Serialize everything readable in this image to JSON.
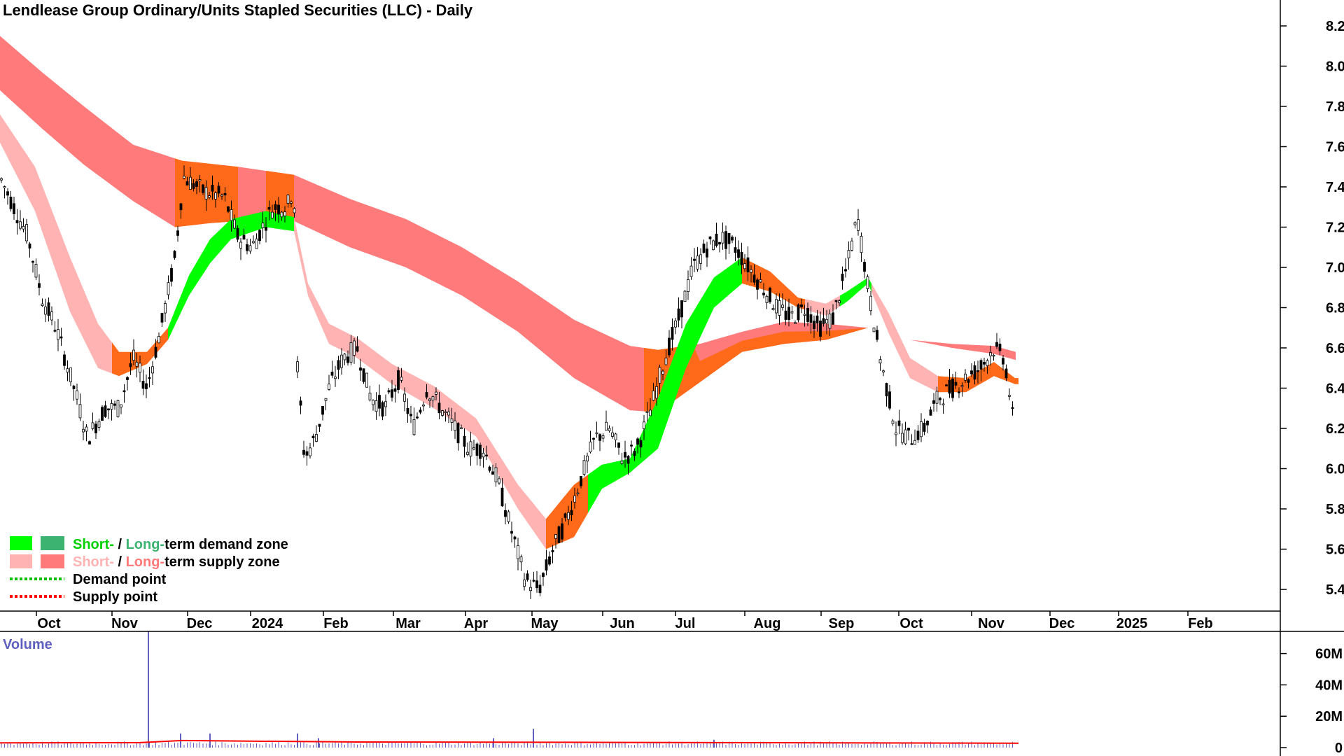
{
  "chart_data": {
    "type": "candlestick",
    "title": "Lendlease Group Ordinary/Units Stapled Securities (LLC) - Daily",
    "price_axis": {
      "ylim": [
        5.3,
        8.3
      ],
      "ticks": [
        "5.4",
        "5.6",
        "5.8",
        "6.0",
        "6.2",
        "6.4",
        "6.6",
        "6.8",
        "7.0",
        "7.2",
        "7.4",
        "7.6",
        "7.8",
        "8.0",
        "8.2"
      ]
    },
    "x_labels": [
      "Oct",
      "Nov",
      "Dec",
      "2024",
      "Feb",
      "Mar",
      "Apr",
      "May",
      "Jun",
      "Jul",
      "Aug",
      "Sep",
      "Oct",
      "Nov",
      "Dec",
      "2025",
      "Feb"
    ],
    "volume_axis": {
      "label": "Volume",
      "ylim": [
        0,
        72
      ],
      "ticks": [
        "0",
        "20M",
        "40M",
        "60M"
      ]
    },
    "colors": {
      "short_demand": "#00ff00",
      "long_demand": "#3cb371",
      "short_supply": "#ffb3b3",
      "long_supply": "#ff7a7a",
      "overlap": "#ff6a1a",
      "demand_point": "#00c000",
      "supply_point": "#ff0000",
      "volume": "#6060c0",
      "volume_ma": "#ff0000"
    },
    "long_term_band": {
      "upper": [
        [
          0,
          8.15
        ],
        [
          60,
          7.97
        ],
        [
          120,
          7.8
        ],
        [
          190,
          7.61
        ],
        [
          260,
          7.53
        ],
        [
          340,
          7.5
        ],
        [
          420,
          7.46
        ],
        [
          500,
          7.34
        ],
        [
          580,
          7.24
        ],
        [
          660,
          7.1
        ],
        [
          740,
          6.93
        ],
        [
          820,
          6.74
        ],
        [
          900,
          6.61
        ],
        [
          940,
          6.59
        ],
        [
          1000,
          6.62
        ],
        [
          1060,
          6.68
        ],
        [
          1120,
          6.73
        ],
        [
          1180,
          6.72
        ],
        [
          1240,
          6.7
        ],
        [
          1300,
          6.64
        ],
        [
          1360,
          6.62
        ],
        [
          1420,
          6.61
        ],
        [
          1451,
          6.58
        ]
      ],
      "lower": [
        [
          0,
          7.88
        ],
        [
          60,
          7.69
        ],
        [
          120,
          7.51
        ],
        [
          190,
          7.33
        ],
        [
          250,
          7.2
        ],
        [
          300,
          7.22
        ],
        [
          340,
          7.23
        ],
        [
          420,
          7.23
        ],
        [
          500,
          7.1
        ],
        [
          580,
          7.0
        ],
        [
          660,
          6.86
        ],
        [
          740,
          6.68
        ],
        [
          820,
          6.45
        ],
        [
          900,
          6.29
        ],
        [
          940,
          6.28
        ],
        [
          1000,
          6.43
        ],
        [
          1060,
          6.58
        ],
        [
          1120,
          6.62
        ],
        [
          1180,
          6.64
        ],
        [
          1240,
          6.7
        ],
        [
          1300,
          6.64
        ],
        [
          1360,
          6.6
        ],
        [
          1420,
          6.57
        ],
        [
          1451,
          6.54
        ]
      ]
    },
    "short_term_band": {
      "upper": [
        [
          0,
          7.76
        ],
        [
          50,
          7.5
        ],
        [
          100,
          7.05
        ],
        [
          140,
          6.72
        ],
        [
          170,
          6.58
        ],
        [
          210,
          6.58
        ],
        [
          240,
          6.7
        ],
        [
          270,
          6.96
        ],
        [
          300,
          7.14
        ],
        [
          330,
          7.24
        ],
        [
          380,
          7.28
        ],
        [
          420,
          7.25
        ],
        [
          440,
          6.92
        ],
        [
          470,
          6.72
        ],
        [
          510,
          6.65
        ],
        [
          560,
          6.52
        ],
        [
          620,
          6.41
        ],
        [
          680,
          6.25
        ],
        [
          740,
          5.92
        ],
        [
          780,
          5.75
        ],
        [
          820,
          5.92
        ],
        [
          860,
          6.02
        ],
        [
          900,
          6.05
        ],
        [
          940,
          6.35
        ],
        [
          980,
          6.72
        ],
        [
          1020,
          6.95
        ],
        [
          1060,
          7.05
        ],
        [
          1100,
          6.98
        ],
        [
          1140,
          6.85
        ],
        [
          1180,
          6.82
        ],
        [
          1210,
          6.88
        ],
        [
          1240,
          6.95
        ],
        [
          1270,
          6.77
        ],
        [
          1300,
          6.55
        ],
        [
          1340,
          6.46
        ],
        [
          1380,
          6.45
        ],
        [
          1420,
          6.53
        ],
        [
          1450,
          6.45
        ]
      ],
      "lower": [
        [
          0,
          7.62
        ],
        [
          50,
          7.28
        ],
        [
          100,
          6.78
        ],
        [
          140,
          6.5
        ],
        [
          170,
          6.46
        ],
        [
          210,
          6.52
        ],
        [
          240,
          6.64
        ],
        [
          270,
          6.86
        ],
        [
          300,
          7.02
        ],
        [
          330,
          7.14
        ],
        [
          380,
          7.2
        ],
        [
          420,
          7.18
        ],
        [
          440,
          6.86
        ],
        [
          470,
          6.62
        ],
        [
          510,
          6.55
        ],
        [
          560,
          6.42
        ],
        [
          620,
          6.3
        ],
        [
          680,
          6.16
        ],
        [
          740,
          5.8
        ],
        [
          780,
          5.6
        ],
        [
          820,
          5.66
        ],
        [
          860,
          5.9
        ],
        [
          900,
          5.98
        ],
        [
          940,
          6.1
        ],
        [
          980,
          6.5
        ],
        [
          1020,
          6.8
        ],
        [
          1060,
          6.92
        ],
        [
          1100,
          6.88
        ],
        [
          1140,
          6.8
        ],
        [
          1180,
          6.76
        ],
        [
          1210,
          6.83
        ],
        [
          1240,
          6.92
        ],
        [
          1270,
          6.67
        ],
        [
          1300,
          6.45
        ],
        [
          1340,
          6.38
        ],
        [
          1380,
          6.38
        ],
        [
          1420,
          6.46
        ],
        [
          1450,
          6.42
        ]
      ]
    },
    "volume_spikes": [
      [
        212,
        74
      ],
      [
        258,
        9
      ],
      [
        300,
        9
      ],
      [
        425,
        9
      ],
      [
        455,
        6
      ],
      [
        705,
        6
      ],
      [
        762,
        12
      ],
      [
        1020,
        5
      ]
    ],
    "legend": [
      {
        "part1": "Short-",
        "sep": " / ",
        "part2": "Long-",
        "rest": "term demand zone"
      },
      {
        "part1": "Short-",
        "sep": " / ",
        "part2": "Long-",
        "rest": "term supply zone"
      },
      {
        "rest": "Demand point"
      },
      {
        "rest": "Supply point"
      }
    ]
  }
}
